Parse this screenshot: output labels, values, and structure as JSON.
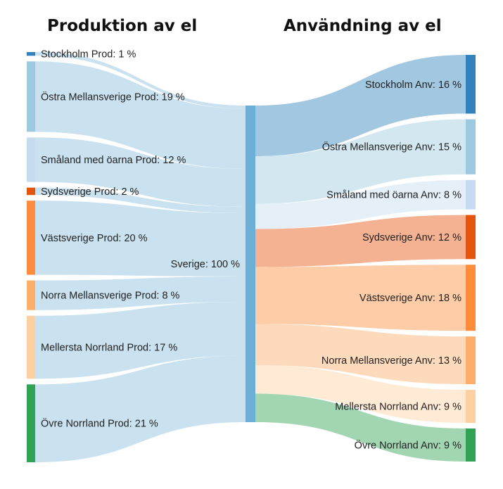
{
  "chart_data": {
    "type": "sankey",
    "headings": {
      "left": "Produktion av el",
      "right": "Användning av el"
    },
    "center": {
      "label": "Sverige: 100 %",
      "color": "#6BAED6"
    },
    "sources": [
      {
        "label": "Stockholm Prod: 1 %",
        "value": 1,
        "color": "#3182BD"
      },
      {
        "label": "Östra Mellansverige Prod: 19 %",
        "value": 19,
        "color": "#9ECAE1"
      },
      {
        "label": "Småland med öarna Prod: 12 %",
        "value": 12,
        "color": "#C6DBEF"
      },
      {
        "label": "Sydsverige Prod: 2 %",
        "value": 2,
        "color": "#E6550D"
      },
      {
        "label": "Västsverige Prod: 20 %",
        "value": 20,
        "color": "#FD8D3C"
      },
      {
        "label": "Norra Mellansverige Prod: 8 %",
        "value": 8,
        "color": "#FDAE6B"
      },
      {
        "label": "Mellersta Norrland Prod: 17 %",
        "value": 17,
        "color": "#FDD0A2"
      },
      {
        "label": "Övre Norrland Prod: 21 %",
        "value": 21,
        "color": "#31A354"
      }
    ],
    "targets": [
      {
        "label": "Stockholm Anv: 16 %",
        "value": 16,
        "color": "#3182BD"
      },
      {
        "label": "Östra Mellansverige Anv: 15 %",
        "value": 15,
        "color": "#9ECAE1"
      },
      {
        "label": "Småland med öarna Anv: 8 %",
        "value": 8,
        "color": "#C6DBEF"
      },
      {
        "label": "Sydsverige Anv: 12 %",
        "value": 12,
        "color": "#E6550D"
      },
      {
        "label": "Västsverige Anv: 18 %",
        "value": 18,
        "color": "#FD8D3C"
      },
      {
        "label": "Norra Mellansverige Anv: 13 %",
        "value": 13,
        "color": "#FDAE6B"
      },
      {
        "label": "Mellersta Norrland Anv: 9 %",
        "value": 9,
        "color": "#FDD0A2"
      },
      {
        "label": "Övre Norrland Anv: 9 %",
        "value": 9,
        "color": "#31A354"
      }
    ]
  }
}
